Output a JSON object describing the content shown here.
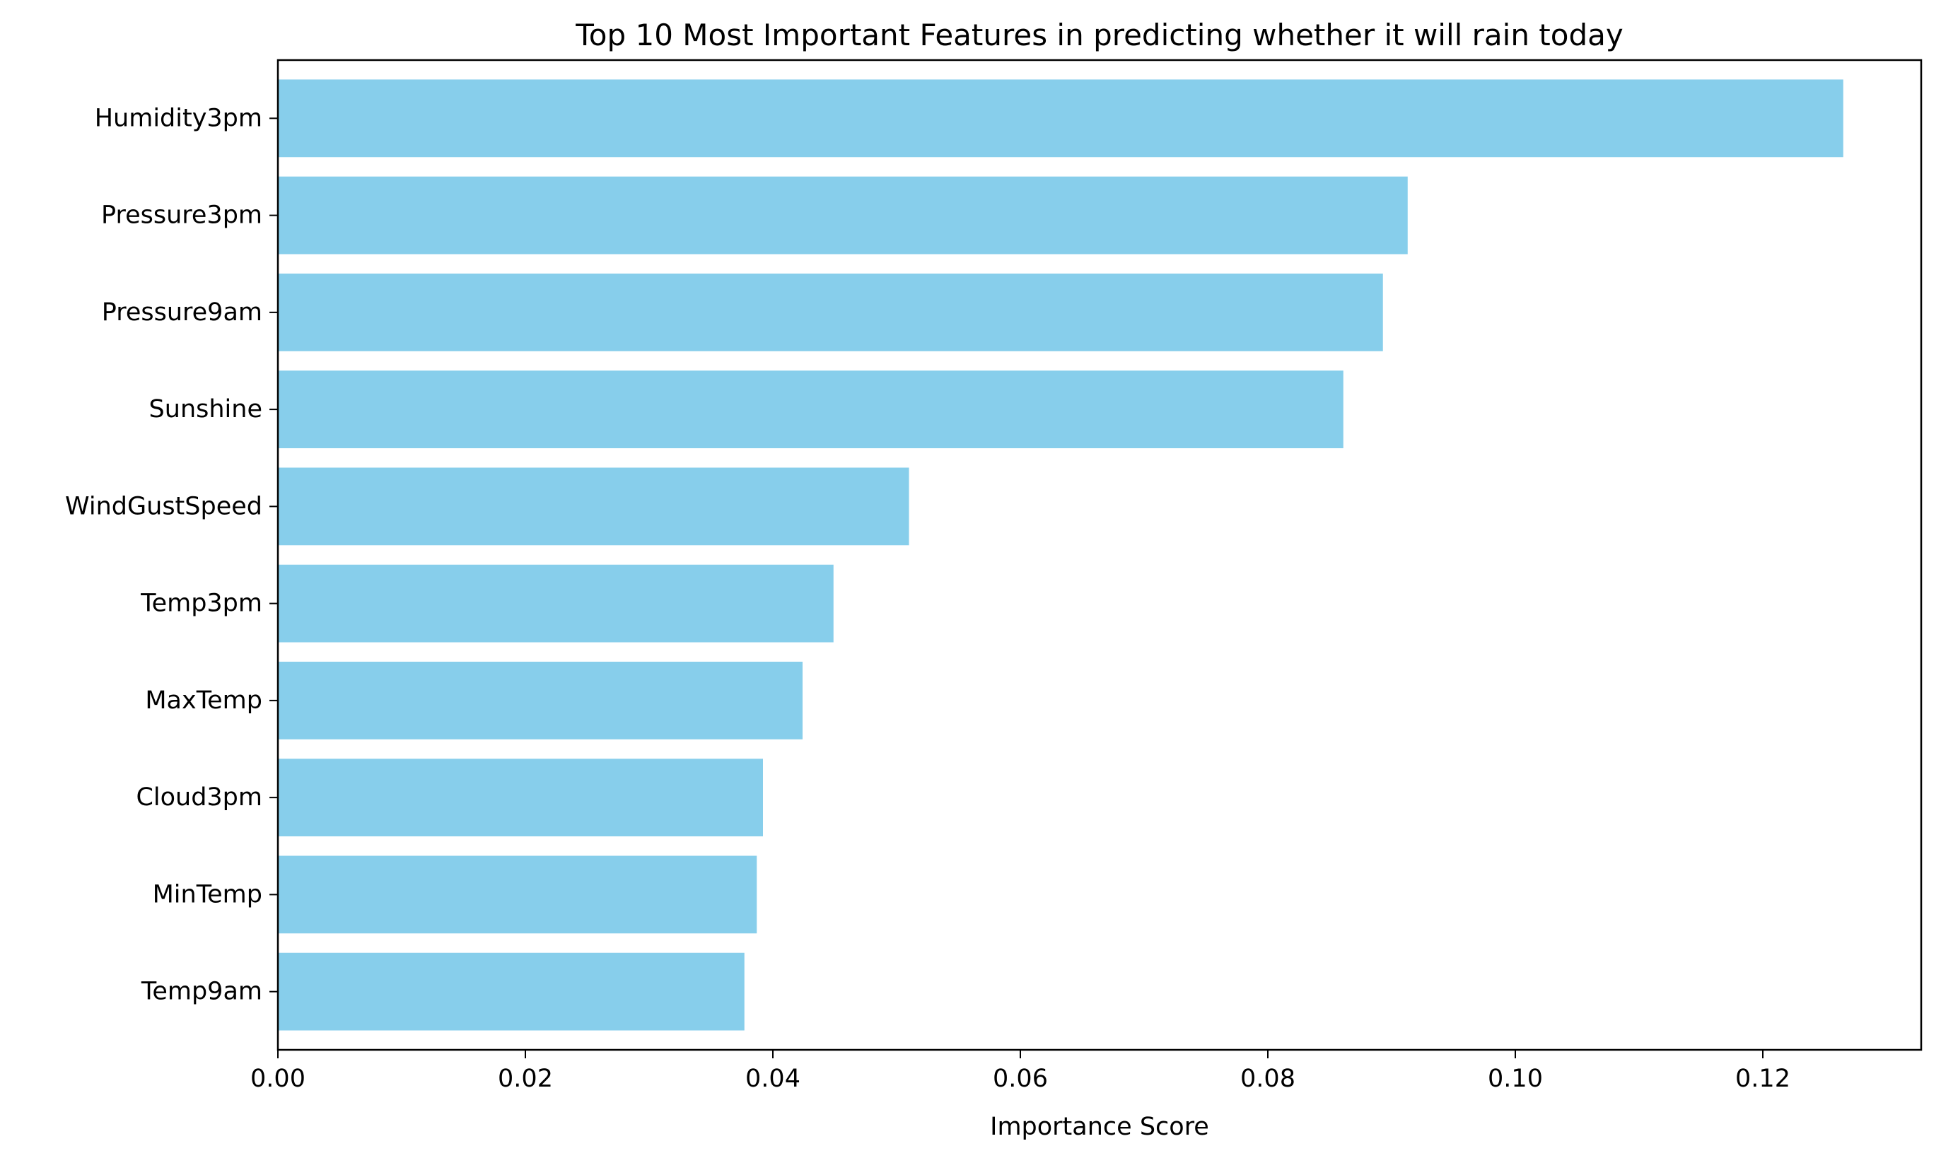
{
  "chart_data": {
    "type": "bar",
    "orientation": "horizontal",
    "title": "Top 10 Most Important Features in predicting whether it will rain today",
    "xlabel": "Importance Score",
    "ylabel": "",
    "categories": [
      "Humidity3pm",
      "Pressure3pm",
      "Pressure9am",
      "Sunshine",
      "WindGustSpeed",
      "Temp3pm",
      "MaxTemp",
      "Cloud3pm",
      "MinTemp",
      "Temp9am"
    ],
    "values": [
      0.1265,
      0.0913,
      0.0893,
      0.0861,
      0.051,
      0.0449,
      0.0424,
      0.0392,
      0.0387,
      0.0377
    ],
    "xlim": [
      0,
      0.1328
    ],
    "xticks": [
      0,
      0.02,
      0.04,
      0.06,
      0.08,
      0.1,
      0.12
    ],
    "xtick_labels": [
      "0.00",
      "0.02",
      "0.04",
      "0.06",
      "0.08",
      "0.10",
      "0.12"
    ],
    "bar_color": "#87ceeb",
    "grid": false,
    "legend": "none"
  }
}
